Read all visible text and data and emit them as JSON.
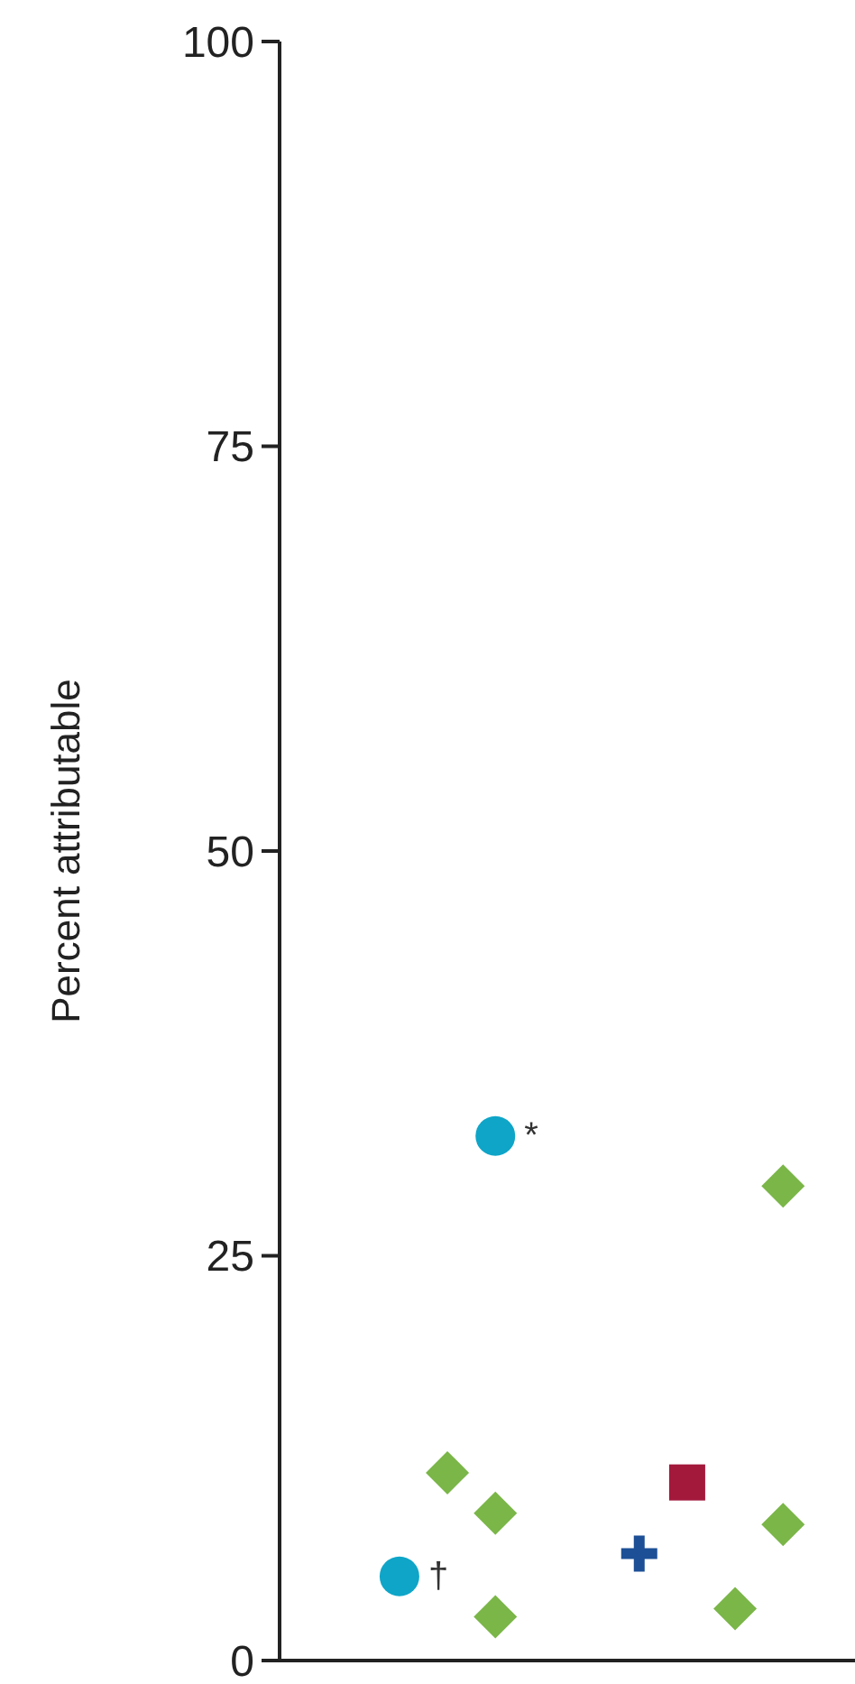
{
  "chart_data": {
    "type": "scatter",
    "ylabel": "Percent attributable",
    "ylim": [
      0,
      100
    ],
    "yticks": [
      0,
      25,
      50,
      75,
      100
    ],
    "tick_labels": "y",
    "grid": false,
    "categories": [
      null,
      null,
      null,
      null,
      null,
      null,
      null,
      null,
      null,
      null,
      null,
      null
    ],
    "series": [
      {
        "color": "#0ea5c8",
        "marker": "circle",
        "values": [
          null,
          null,
          5.2,
          null,
          32.4,
          null,
          null,
          null,
          null,
          null,
          null,
          null
        ]
      },
      {
        "color": "#7ab648",
        "marker": "diamond",
        "values": [
          null,
          null,
          null,
          11.6,
          9.1,
          null,
          null,
          null,
          null,
          3.2,
          29.3,
          null
        ]
      },
      {
        "color": "#7ab648",
        "marker": "diamond",
        "values": [
          null,
          null,
          null,
          null,
          2.7,
          null,
          null,
          null,
          null,
          null,
          8.4,
          null
        ]
      },
      {
        "color": "#a3193c",
        "marker": "square",
        "values": [
          null,
          null,
          null,
          null,
          null,
          null,
          null,
          null,
          11.0,
          null,
          null,
          null
        ]
      },
      {
        "color": "#1c4f96",
        "marker": "cross",
        "values": [
          null,
          null,
          null,
          null,
          null,
          null,
          null,
          6.6,
          null,
          null,
          null,
          null
        ]
      }
    ],
    "annotations": [
      "†",
      "*"
    ]
  }
}
